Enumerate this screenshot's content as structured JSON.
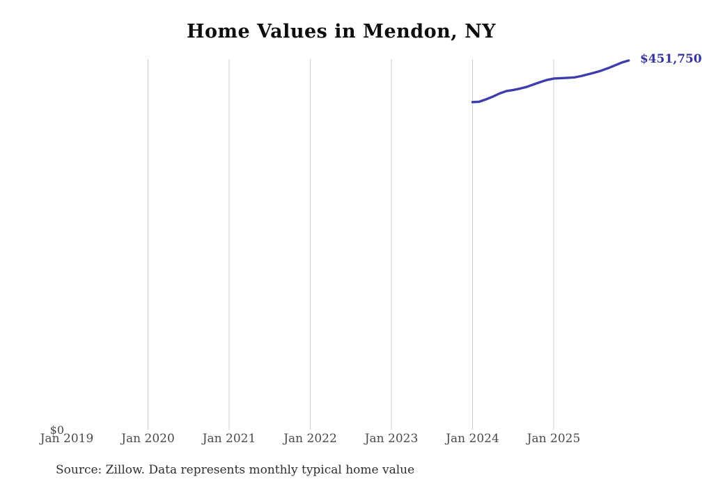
{
  "chart_data": {
    "type": "line",
    "title": "Home Values in Mendon, NY",
    "x_ticks": [
      "Jan 2019",
      "Jan 2020",
      "Jan 2021",
      "Jan 2022",
      "Jan 2023",
      "Jan 2024",
      "Jan 2025"
    ],
    "y_zero_label": "$0",
    "end_label": "$451,750",
    "grid": "vertical-yearly-gridlines",
    "legend": "none",
    "ylim": [
      0,
      453000
    ],
    "line_color": "#3d3dae",
    "series": [
      {
        "name": "Typical home value",
        "x_start": "Jan 2024",
        "x_interval": "monthly",
        "x": [
          "Jan 2024",
          "Feb 2024",
          "Mar 2024",
          "Apr 2024",
          "May 2024",
          "Jun 2024",
          "Jul 2024",
          "Aug 2024",
          "Sep 2024",
          "Oct 2024",
          "Nov 2024",
          "Dec 2024",
          "Jan 2025",
          "Feb 2025",
          "Mar 2025",
          "Apr 2025",
          "May 2025",
          "Jun 2025",
          "Jul 2025",
          "Aug 2025",
          "Sep 2025",
          "Oct 2025",
          "Nov 2025",
          "Dec 2025"
        ],
        "values": [
          401000,
          401500,
          404400,
          407700,
          411600,
          414500,
          415800,
          417500,
          419600,
          422600,
          425500,
          428100,
          429800,
          430200,
          430600,
          431100,
          432800,
          434900,
          437000,
          439500,
          442500,
          445900,
          449300,
          451750
        ]
      }
    ]
  },
  "source_note": "Source: Zillow. Data represents monthly typical home value"
}
